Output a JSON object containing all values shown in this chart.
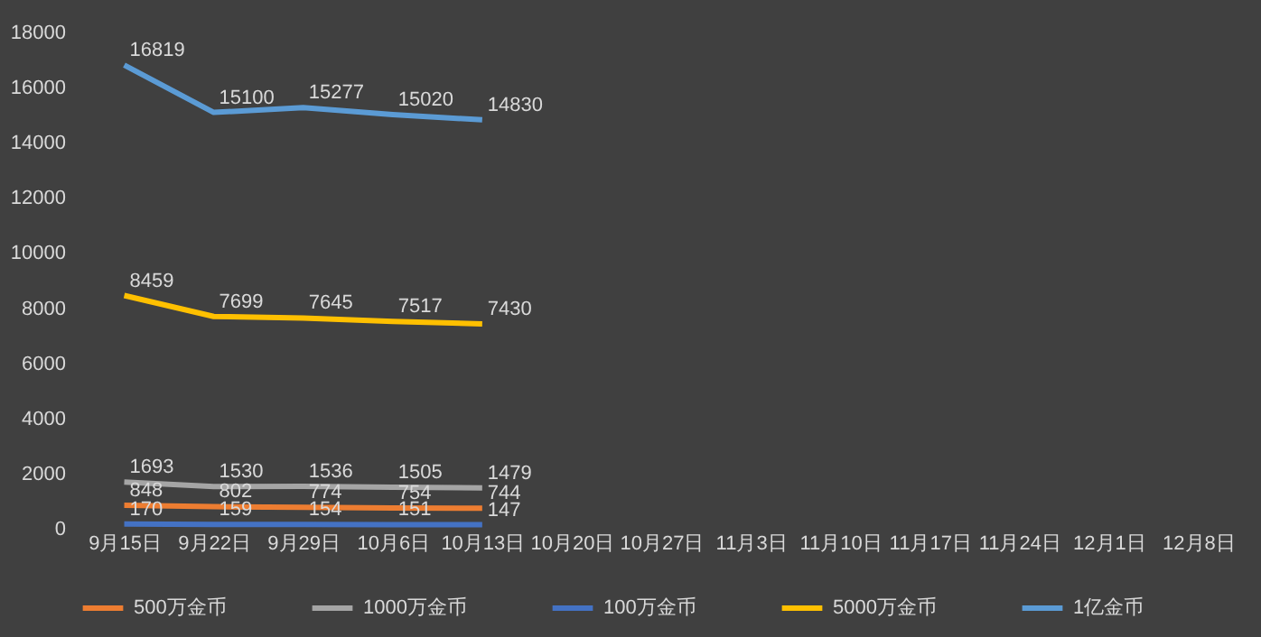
{
  "chart_data": {
    "type": "line",
    "categories": [
      "9月15日",
      "9月22日",
      "9月29日",
      "10月6日",
      "10月13日",
      "10月20日",
      "10月27日",
      "11月3日",
      "11月10日",
      "11月17日",
      "11月24日",
      "12月1日",
      "12月8日"
    ],
    "series": [
      {
        "name": "500万金币",
        "color": "#ed7d31",
        "values": [
          848,
          802,
          774,
          754,
          744,
          null,
          null,
          null,
          null,
          null,
          null,
          null,
          null
        ]
      },
      {
        "name": "1000万金币",
        "color": "#a5a5a5",
        "values": [
          1693,
          1530,
          1536,
          1505,
          1479,
          null,
          null,
          null,
          null,
          null,
          null,
          null,
          null
        ]
      },
      {
        "name": "100万金币",
        "color": "#4472c4",
        "values": [
          170,
          159,
          154,
          151,
          147,
          null,
          null,
          null,
          null,
          null,
          null,
          null,
          null
        ]
      },
      {
        "name": "5000万金币",
        "color": "#ffc000",
        "values": [
          8459,
          7699,
          7645,
          7517,
          7430,
          null,
          null,
          null,
          null,
          null,
          null,
          null,
          null
        ]
      },
      {
        "name": "1亿金币",
        "color": "#5b9bd5",
        "values": [
          16819,
          15100,
          15277,
          15020,
          14830,
          null,
          null,
          null,
          null,
          null,
          null,
          null,
          null
        ]
      }
    ],
    "ylim": [
      0,
      18000
    ],
    "yticks": [
      0,
      2000,
      4000,
      6000,
      8000,
      10000,
      12000,
      14000,
      16000,
      18000
    ],
    "grid": false,
    "legend": "bottom",
    "data_labels": true,
    "marker": "none",
    "line_style": "solid"
  }
}
